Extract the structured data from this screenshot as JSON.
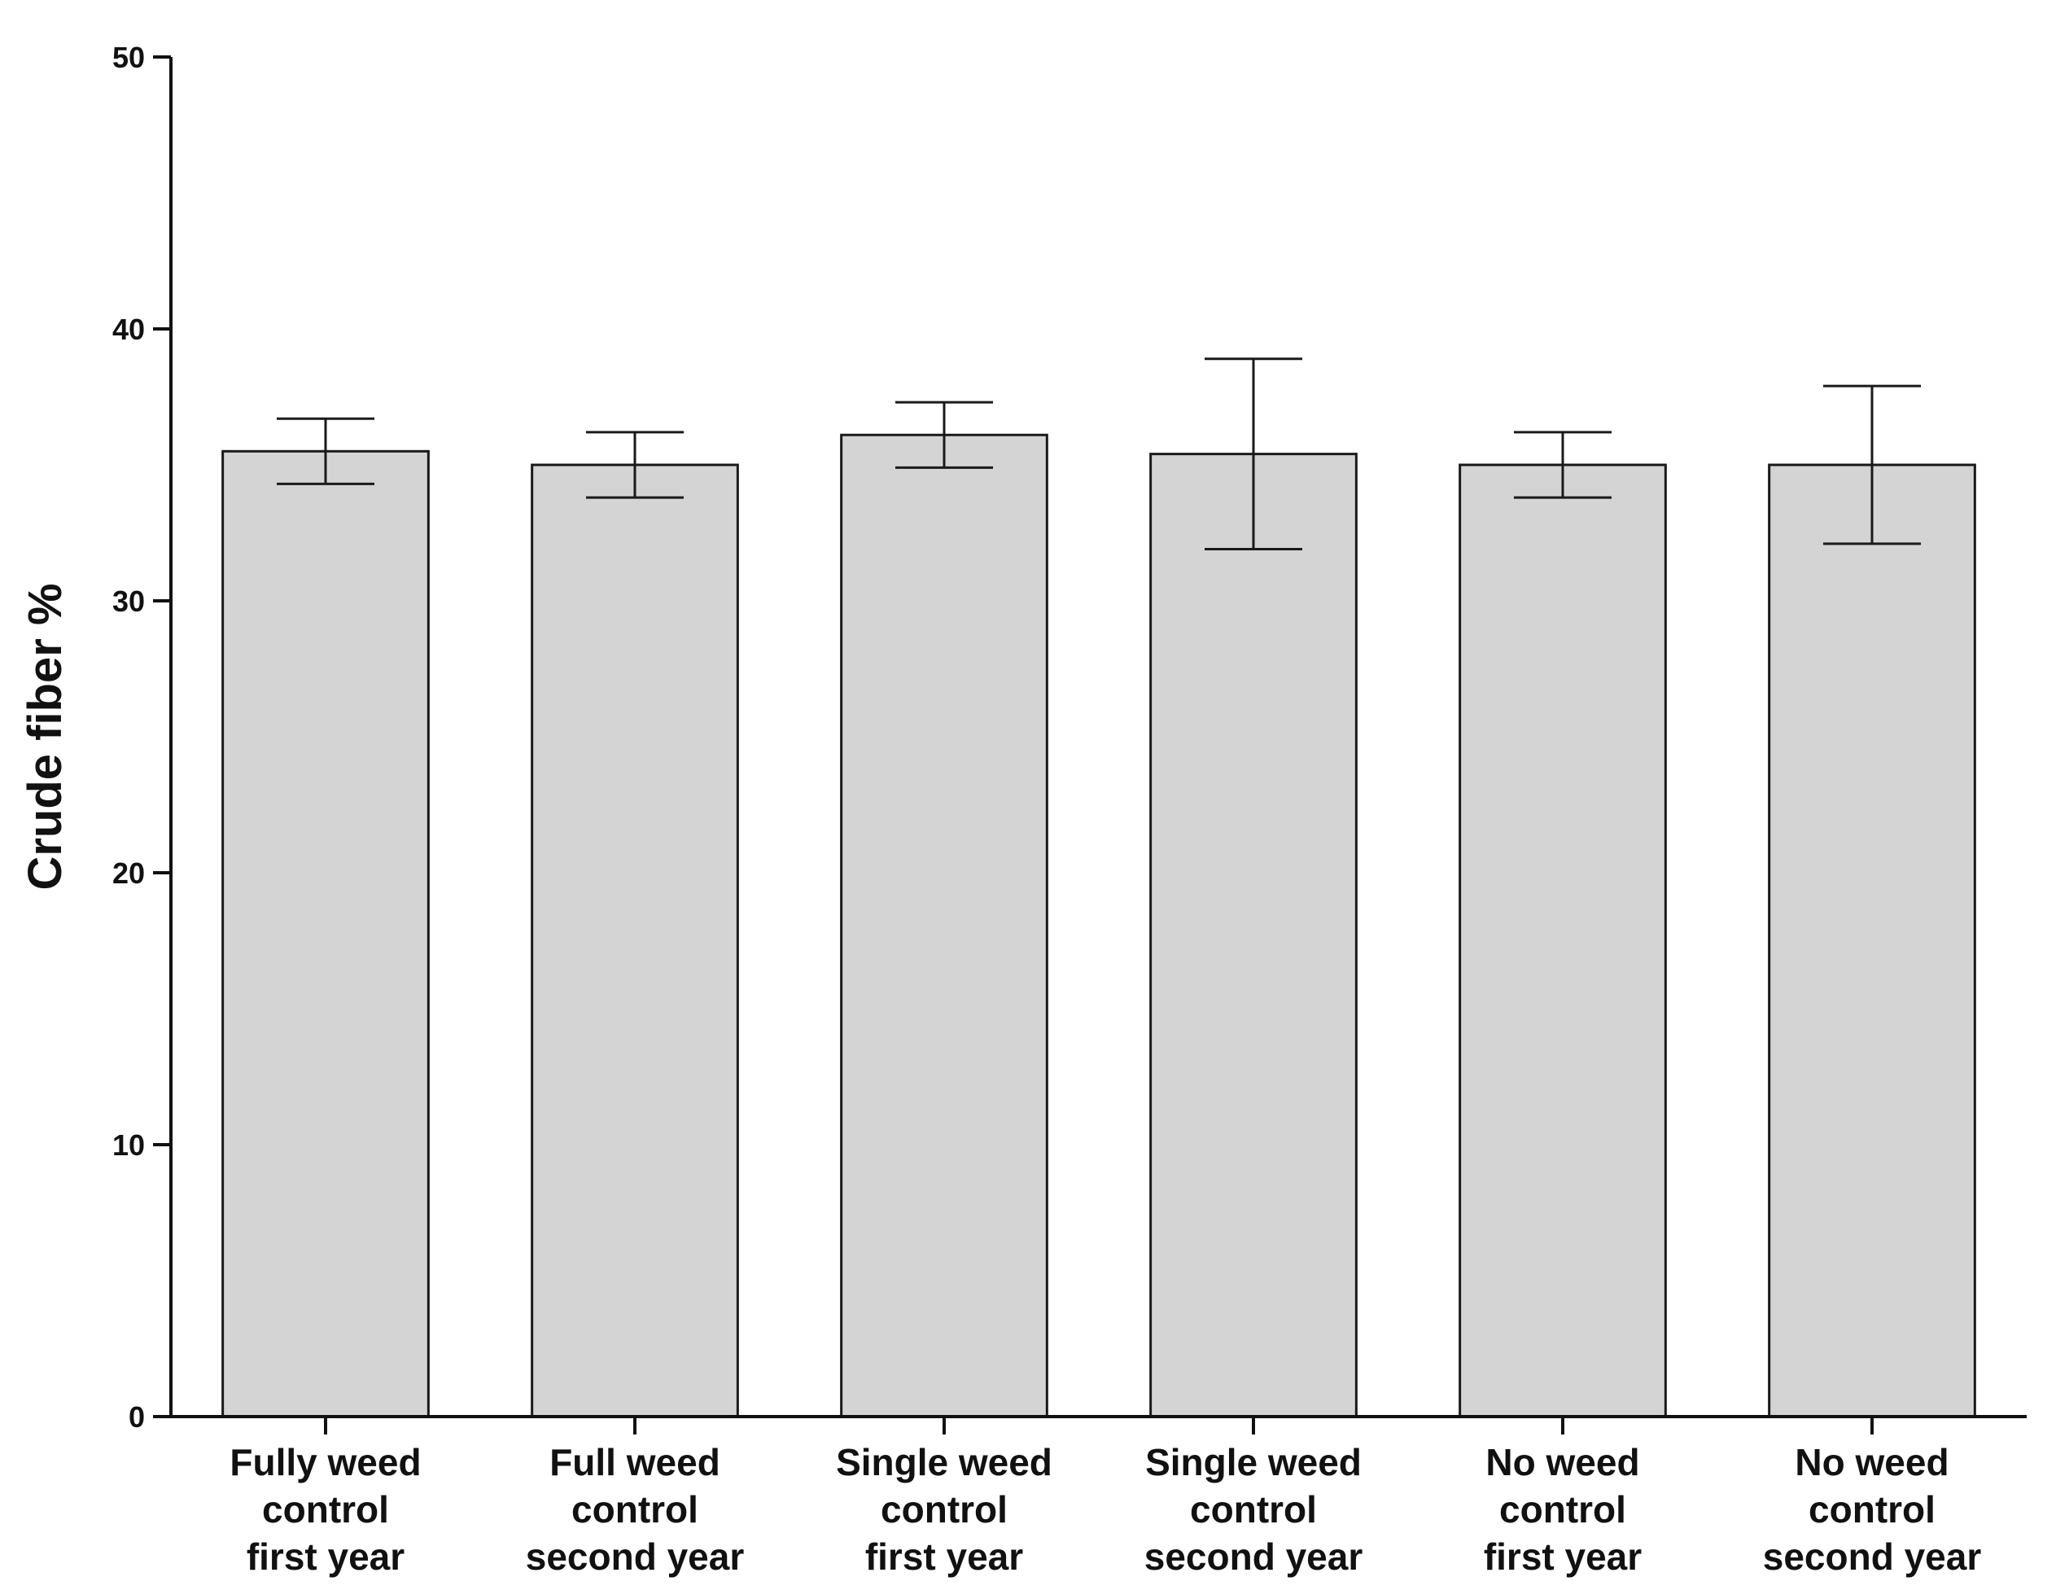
{
  "chart_data": {
    "type": "bar",
    "title": "",
    "xlabel": "",
    "ylabel": "Crude fiber %",
    "ylim": [
      0,
      50
    ],
    "yticks": [
      0,
      10,
      20,
      30,
      40,
      50
    ],
    "categories": [
      [
        "Fully weed",
        "control",
        "first year"
      ],
      [
        "Full weed",
        "control",
        "second year"
      ],
      [
        "Single weed",
        "control",
        "first year"
      ],
      [
        "Single weed",
        "control",
        "second year"
      ],
      [
        "No weed",
        "control",
        "first year"
      ],
      [
        "No weed",
        "control",
        "second year"
      ]
    ],
    "values": [
      35.5,
      35.0,
      36.1,
      35.4,
      35.0,
      35.0
    ],
    "error_lower": [
      34.3,
      33.8,
      34.9,
      31.9,
      33.8,
      32.1
    ],
    "error_upper": [
      36.7,
      36.2,
      37.3,
      38.9,
      36.2,
      37.9
    ],
    "grid": false,
    "legend": "none",
    "bar_color": "#d4d4d4",
    "edge_color": "#1a1a1a"
  }
}
